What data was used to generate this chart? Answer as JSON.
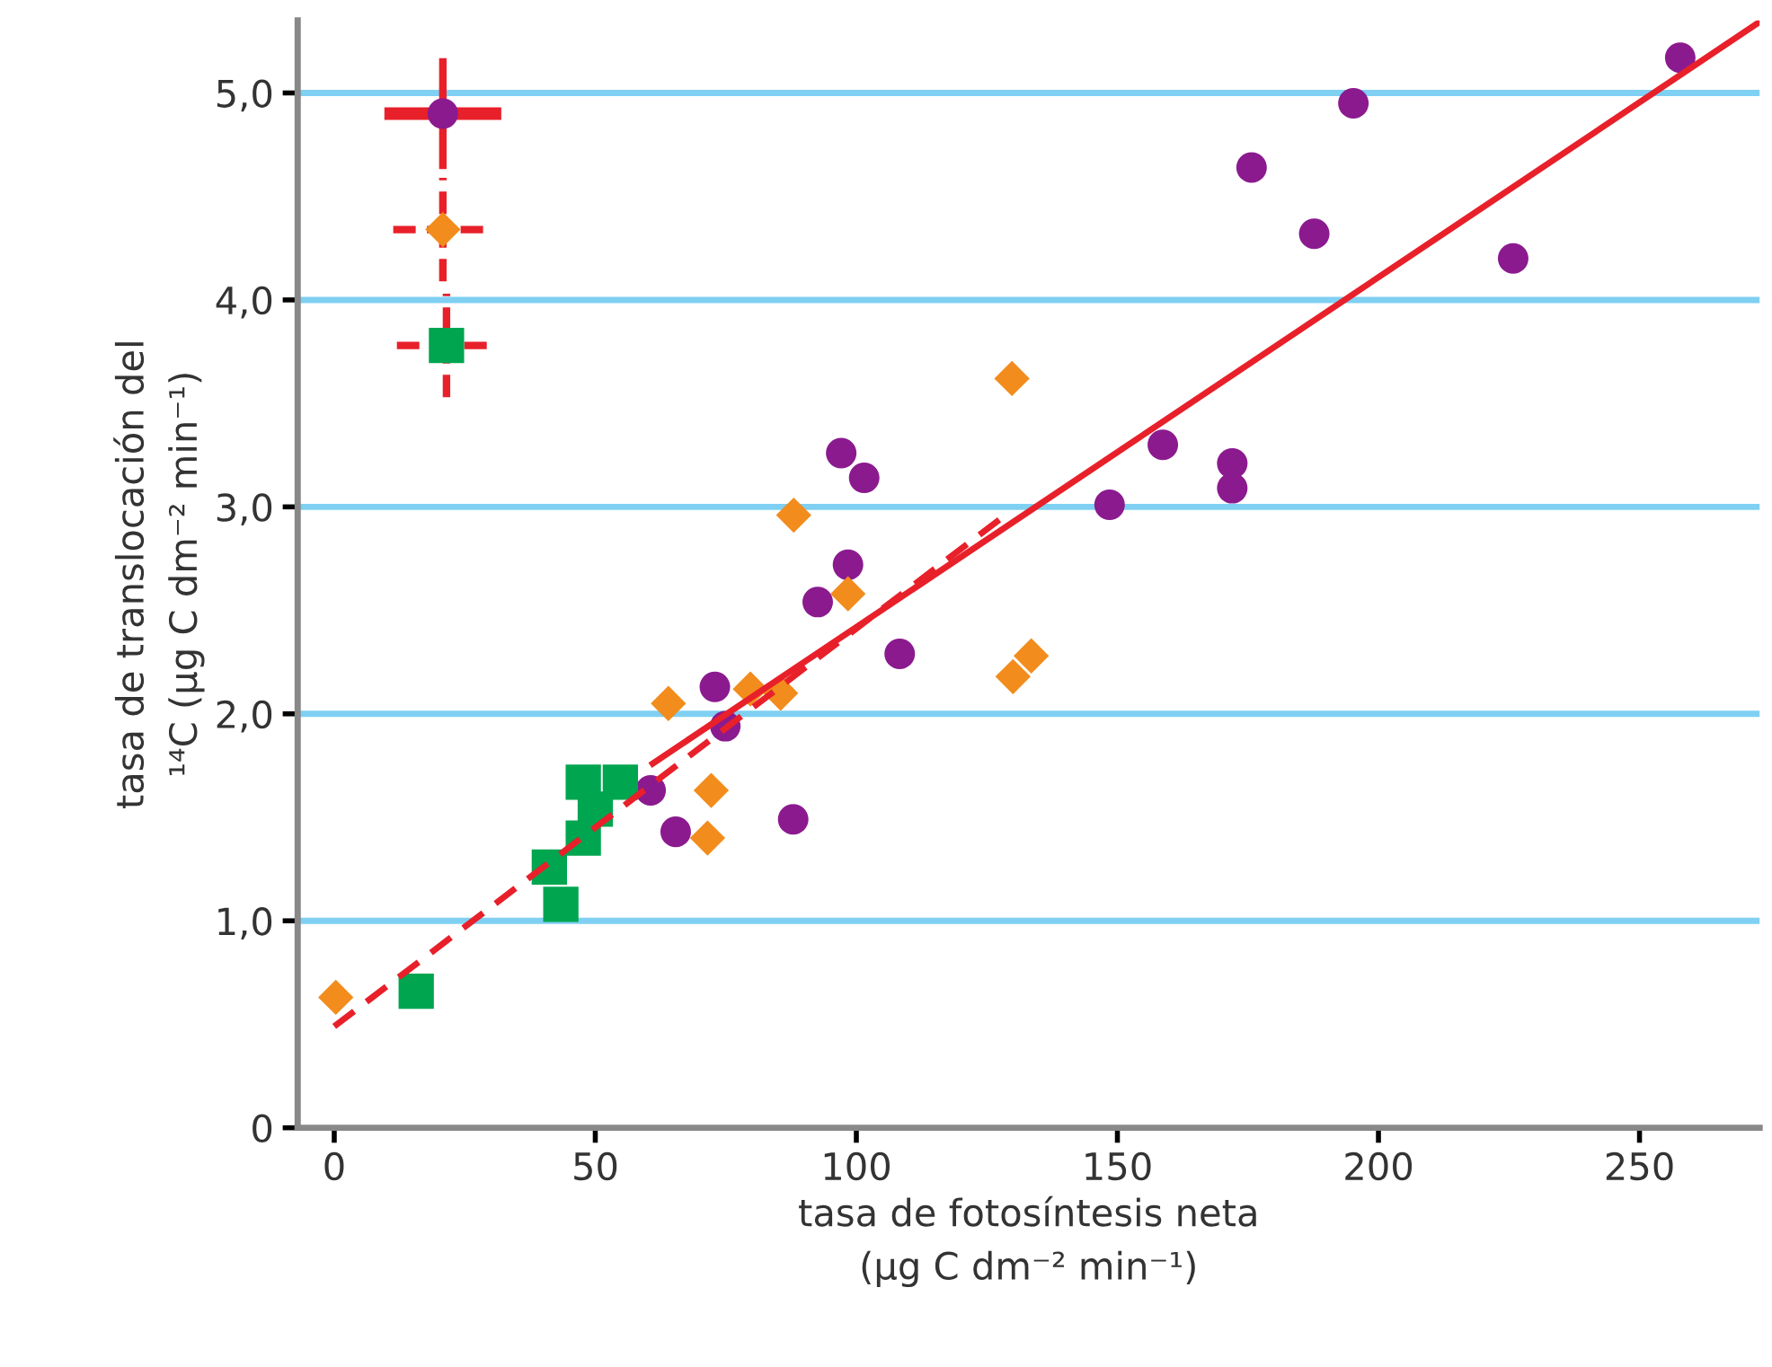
{
  "chart_data": {
    "type": "scatter",
    "xlabel": "tasa de fotosíntesis neta\n(μg C dm⁻² min⁻¹)",
    "ylabel": "tasa de translocación del\n¹⁴C (μg C dm⁻² min⁻¹)",
    "xlim": [
      -7,
      273
    ],
    "ylim": [
      0,
      5.35
    ],
    "xticks": [
      0,
      50,
      100,
      150,
      200,
      250
    ],
    "yticks": [
      {
        "value": 0,
        "label": "0"
      },
      {
        "value": 1,
        "label": "1,0"
      },
      {
        "value": 2,
        "label": "2,0"
      },
      {
        "value": 3,
        "label": "3,0"
      },
      {
        "value": 4,
        "label": "4,0"
      },
      {
        "value": 5,
        "label": "5,0"
      }
    ],
    "grid": "y",
    "legend": false,
    "series": [
      {
        "marker": "circle",
        "color": "#8b1a8f",
        "x": [
          257.8,
          195.2,
          175.7,
          187.7,
          225.8,
          158.7,
          172,
          172,
          148.5,
          97.1,
          101.5,
          98.4,
          92.6,
          108.3,
          72.9,
          74.9,
          60.6,
          65.4,
          87.9
        ],
        "values": [
          5.17,
          4.95,
          4.64,
          4.32,
          4.2,
          3.3,
          3.21,
          3.09,
          3.01,
          3.26,
          3.14,
          2.72,
          2.54,
          2.29,
          2.13,
          1.94,
          1.63,
          1.43,
          1.49
        ]
      },
      {
        "marker": "diamond",
        "color": "#f28c1c",
        "x": [
          0.3,
          64,
          88,
          98.4,
          129.8,
          72.2,
          71.5,
          79.7,
          85.5,
          130,
          133.5
        ],
        "values": [
          0.63,
          2.05,
          2.96,
          2.58,
          3.62,
          1.63,
          1.4,
          2.12,
          2.1,
          2.18,
          2.28
        ]
      },
      {
        "marker": "square",
        "color": "#00a550",
        "x": [
          15.7,
          41.2,
          43.4,
          47.7,
          47.7,
          50,
          54.8
        ],
        "values": [
          0.66,
          1.26,
          1.08,
          1.4,
          1.67,
          1.54,
          1.67
        ]
      },
      {
        "type": "line",
        "line_style": "solid",
        "color": "#e8202a",
        "x": [
          61,
          272.8
        ],
        "values": [
          1.76,
          5.34
        ]
      },
      {
        "type": "line",
        "line_style": "dashed",
        "color": "#e8202a",
        "x": [
          0,
          128
        ],
        "values": [
          0.49,
          2.95
        ]
      },
      {
        "marker": "circle",
        "color": "#8b1a8f",
        "x": [
          20.8
        ],
        "values": [
          4.9
        ],
        "errors": [
          0.25
        ],
        "xerrors": [
          10
        ],
        "line_style": "solid"
      },
      {
        "marker": "diamond",
        "color": "#f28c1c",
        "x": [
          20.8
        ],
        "values": [
          4.34
        ],
        "errors": [
          0.25
        ],
        "xerrors": [
          9.5
        ],
        "line_style": "dashed"
      },
      {
        "marker": "square",
        "color": "#00a550",
        "x": [
          21.5
        ],
        "values": [
          3.78
        ],
        "errors": [
          0.25
        ],
        "xerrors": [
          9.5
        ],
        "line_style": "dashed"
      }
    ]
  }
}
